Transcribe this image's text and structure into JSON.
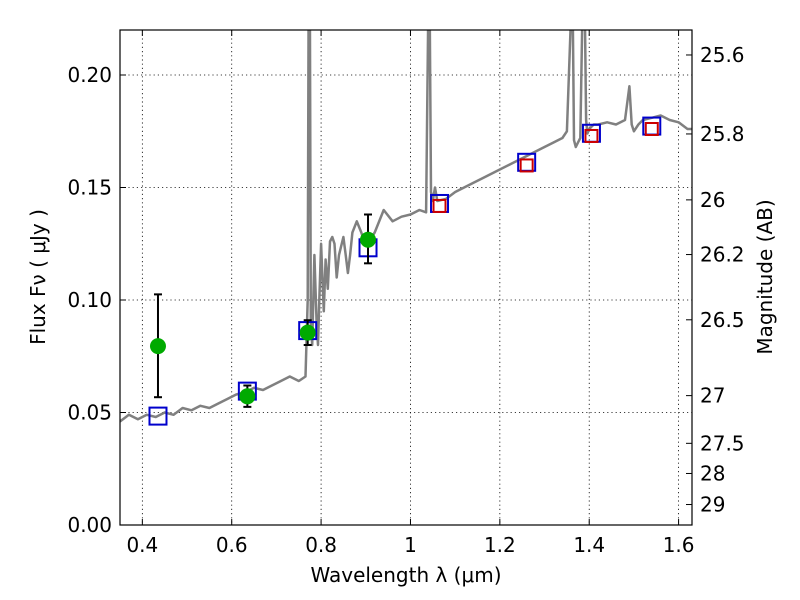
{
  "chart_data": {
    "type": "scatter",
    "xlabel": "Wavelength  λ (μm)",
    "ylabel": "Flux  Fν ( μJy )",
    "y2label": "Magnitude (AB)",
    "xlim": [
      0.35,
      1.63
    ],
    "ylim": [
      0.0,
      0.22
    ],
    "grid": true,
    "x_ticks": [
      0.4,
      0.6,
      0.8,
      1.0,
      1.2,
      1.4,
      1.6
    ],
    "x_tick_labels": [
      "0.4",
      "0.6",
      "0.8",
      "1",
      "1.2",
      "1.4",
      "1.6"
    ],
    "y_ticks": [
      0.0,
      0.05,
      0.1,
      0.15,
      0.2
    ],
    "y_tick_labels": [
      "0.00",
      "0.05",
      "0.10",
      "0.15",
      "0.20"
    ],
    "y2_ticks": [
      {
        "label": "25.6",
        "flux": 0.2089
      },
      {
        "label": "25.8",
        "flux": 0.1738
      },
      {
        "label": "26",
        "flux": 0.1445
      },
      {
        "label": "26.2",
        "flux": 0.1202
      },
      {
        "label": "26.5",
        "flux": 0.0912
      },
      {
        "label": "27",
        "flux": 0.0575
      },
      {
        "label": "27.5",
        "flux": 0.0363
      },
      {
        "label": "28",
        "flux": 0.0229
      },
      {
        "label": "29",
        "flux": 0.0091
      }
    ],
    "series": [
      {
        "style": "line",
        "color": "#808080",
        "x": [
          0.35,
          0.37,
          0.39,
          0.41,
          0.43,
          0.45,
          0.47,
          0.49,
          0.51,
          0.53,
          0.55,
          0.57,
          0.59,
          0.61,
          0.63,
          0.65,
          0.67,
          0.69,
          0.71,
          0.73,
          0.75,
          0.765,
          0.77,
          0.772,
          0.775,
          0.777,
          0.78,
          0.785,
          0.79,
          0.793,
          0.796,
          0.8,
          0.803,
          0.806,
          0.81,
          0.815,
          0.82,
          0.825,
          0.83,
          0.835,
          0.84,
          0.85,
          0.855,
          0.86,
          0.865,
          0.87,
          0.88,
          0.89,
          0.9,
          0.92,
          0.94,
          0.96,
          0.98,
          1.0,
          1.02,
          1.035,
          1.04,
          1.043,
          1.046,
          1.05,
          1.055,
          1.06,
          1.08,
          1.1,
          1.12,
          1.14,
          1.16,
          1.18,
          1.2,
          1.22,
          1.24,
          1.26,
          1.28,
          1.3,
          1.32,
          1.34,
          1.35,
          1.36,
          1.363,
          1.366,
          1.37,
          1.375,
          1.38,
          1.385,
          1.39,
          1.393,
          1.396,
          1.4,
          1.41,
          1.42,
          1.44,
          1.46,
          1.48,
          1.49,
          1.495,
          1.5,
          1.51,
          1.52,
          1.54,
          1.56,
          1.58,
          1.6,
          1.62,
          1.63
        ],
        "y": [
          0.046,
          0.049,
          0.047,
          0.049,
          0.048,
          0.05,
          0.049,
          0.052,
          0.051,
          0.053,
          0.052,
          0.054,
          0.056,
          0.058,
          0.059,
          0.061,
          0.06,
          0.062,
          0.064,
          0.066,
          0.064,
          0.066,
          0.1,
          0.23,
          0.23,
          0.09,
          0.08,
          0.12,
          0.09,
          0.08,
          0.1,
          0.125,
          0.11,
          0.095,
          0.118,
          0.105,
          0.126,
          0.128,
          0.125,
          0.11,
          0.12,
          0.128,
          0.12,
          0.112,
          0.12,
          0.13,
          0.135,
          0.13,
          0.124,
          0.13,
          0.14,
          0.135,
          0.137,
          0.138,
          0.14,
          0.139,
          0.23,
          0.23,
          0.148,
          0.144,
          0.15,
          0.144,
          0.145,
          0.148,
          0.15,
          0.152,
          0.154,
          0.156,
          0.158,
          0.16,
          0.162,
          0.164,
          0.166,
          0.168,
          0.17,
          0.172,
          0.175,
          0.23,
          0.23,
          0.171,
          0.168,
          0.17,
          0.172,
          0.23,
          0.23,
          0.18,
          0.174,
          0.176,
          0.178,
          0.178,
          0.179,
          0.178,
          0.18,
          0.195,
          0.178,
          0.175,
          0.178,
          0.18,
          0.181,
          0.182,
          0.18,
          0.179,
          0.176,
          0.176
        ]
      },
      {
        "style": "open-square",
        "color": "#0000cc",
        "x": [
          0.435,
          0.635,
          0.77,
          0.905,
          1.065,
          1.26,
          1.405,
          1.54
        ],
        "y": [
          0.0484,
          0.0595,
          0.0864,
          0.1232,
          0.1429,
          0.1612,
          0.1741,
          0.1773
        ]
      },
      {
        "style": "open-square",
        "color": "#cc0000",
        "x": [
          1.065,
          1.26,
          1.405,
          1.54
        ],
        "y": [
          0.1418,
          0.1598,
          0.1729,
          0.176
        ]
      },
      {
        "style": "dot-errorbar",
        "color": "#00aa00",
        "x": [
          0.435,
          0.635,
          0.77,
          0.905
        ],
        "y": [
          0.0795,
          0.0572,
          0.0855,
          0.1268
        ],
        "yerr_low": [
          0.0568,
          0.0525,
          0.08,
          0.1163
        ],
        "yerr_high": [
          0.1025,
          0.062,
          0.091,
          0.138
        ]
      }
    ]
  }
}
